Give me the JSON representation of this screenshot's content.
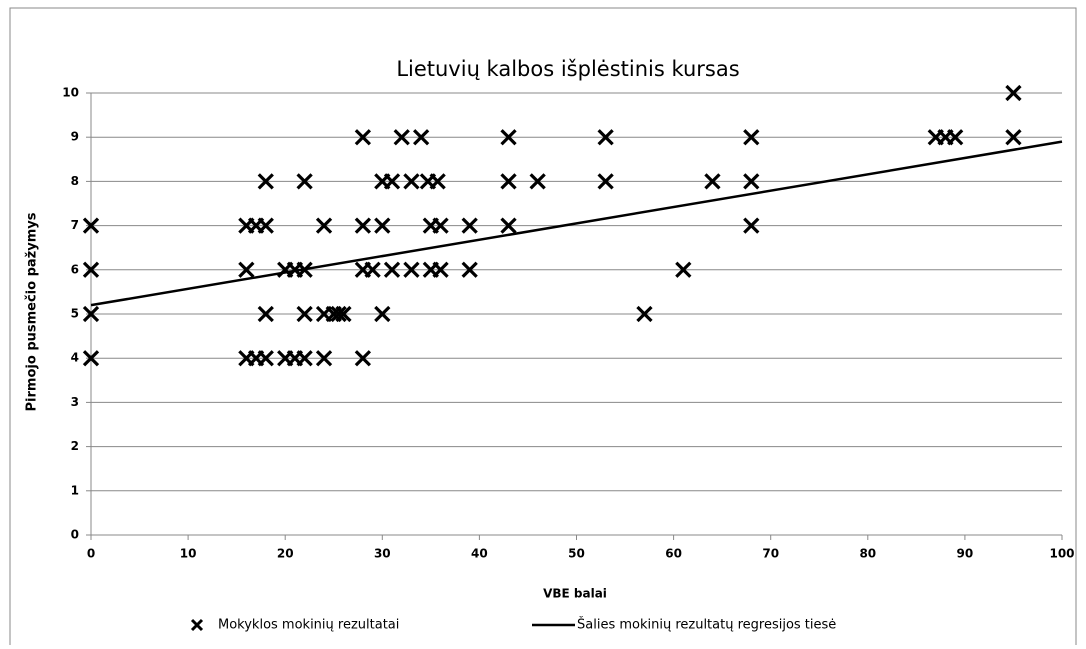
{
  "chart_data": {
    "type": "scatter",
    "title": "Lietuvių kalbos išplėstinis kursas",
    "x_label": "VBE balai",
    "y_label": "Pirmojo pusmečio pažymys",
    "xlim": [
      0,
      100
    ],
    "xticks": [
      0,
      10,
      20,
      30,
      40,
      50,
      60,
      70,
      80,
      90,
      100
    ],
    "ylim": [
      0,
      10
    ],
    "yticks": [
      0,
      1,
      2,
      3,
      4,
      5,
      6,
      7,
      8,
      9,
      10
    ],
    "grid": true,
    "legend": "bottom",
    "series": [
      {
        "name": "Mokyklos mokinių rezultatai",
        "type": "scatter",
        "marker": "x",
        "color": "#000000",
        "x": [
          95,
          28,
          32,
          34,
          43,
          53,
          68,
          87,
          88,
          89,
          95,
          18,
          22,
          30,
          31,
          33,
          34.7,
          35.7,
          43,
          46,
          53,
          64,
          68,
          0,
          16,
          17,
          18,
          24,
          28,
          30,
          35,
          36,
          39,
          43,
          68,
          0,
          16,
          20,
          21,
          22,
          28,
          29,
          31,
          33,
          35,
          36,
          39,
          61,
          0,
          18,
          22,
          24,
          25,
          25.5,
          26,
          30,
          57,
          0,
          16,
          17,
          18,
          20,
          21,
          22,
          24,
          28
        ],
        "values": [
          10,
          9,
          9,
          9,
          9,
          9,
          9,
          9,
          9,
          9,
          9,
          8,
          8,
          8,
          8,
          8,
          8,
          8,
          8,
          8,
          8,
          8,
          8,
          7,
          7,
          7,
          7,
          7,
          7,
          7,
          7,
          7,
          7,
          7,
          7,
          6,
          6,
          6,
          6,
          6,
          6,
          6,
          6,
          6,
          6,
          6,
          6,
          6,
          5,
          5,
          5,
          5,
          5,
          5,
          5,
          5,
          5,
          4,
          4,
          4,
          4,
          4,
          4,
          4,
          4,
          4
        ]
      },
      {
        "name": "Šalies mokinių rezultatų regresijos tiesė",
        "type": "line",
        "color": "#000000",
        "x": [
          0,
          100
        ],
        "values": [
          5.2,
          8.9
        ]
      }
    ]
  }
}
